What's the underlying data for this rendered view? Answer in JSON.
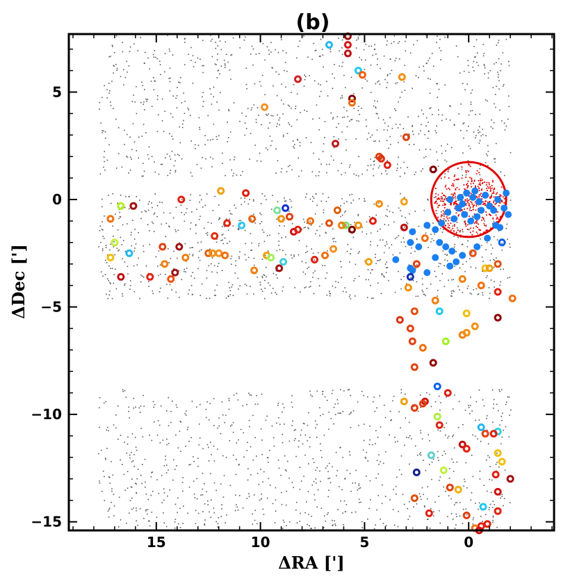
{
  "chart_data": {
    "type": "scatter",
    "title": "(b)",
    "xlabel": "ΔRA [']",
    "ylabel": "ΔDec [']",
    "xlim": [
      19.2,
      -4.1
    ],
    "ylim": [
      -15.4,
      7.7
    ],
    "x_ticks": [
      15,
      10,
      5,
      0
    ],
    "x_tick_labels": [
      "15",
      "10",
      "5",
      "0"
    ],
    "y_ticks": [
      5,
      0,
      -5,
      -10,
      -15
    ],
    "y_tick_labels": [
      "5",
      "0",
      "−5",
      "−10",
      "−15"
    ],
    "background_sources": {
      "description": "small grey points (field objects)",
      "color": "#555555",
      "count": 2600,
      "bands_dec": [
        [
          1.1,
          7.7
        ],
        [
          -8.8,
          -15.3
        ],
        [
          -4.6,
          0.3
        ]
      ],
      "x_range": [
        17.8,
        -2.0
      ]
    },
    "cluster_core": {
      "circle_center": [
        0.0,
        0.0
      ],
      "circle_radius": 1.8,
      "color": "#e00000",
      "count": 450
    },
    "blue_members": {
      "color": "#1a7ff0",
      "points": [
        [
          0.1,
          0.3
        ],
        [
          -0.2,
          0.1
        ],
        [
          -0.5,
          -0.1
        ],
        [
          -0.3,
          0.4
        ],
        [
          0.3,
          -0.2
        ],
        [
          -0.8,
          0.2
        ],
        [
          -1.0,
          -0.3
        ],
        [
          -0.6,
          -0.5
        ],
        [
          0.5,
          -0.4
        ],
        [
          0.2,
          -0.7
        ],
        [
          -0.4,
          -0.8
        ],
        [
          0.7,
          -0.9
        ],
        [
          1.0,
          -0.6
        ],
        [
          -1.2,
          -0.5
        ],
        [
          -1.7,
          -0.4
        ],
        [
          -1.8,
          0.3
        ],
        [
          -1.9,
          -0.7
        ],
        [
          -1.5,
          -1.3
        ],
        [
          1.3,
          -1.1
        ],
        [
          1.6,
          -1.4
        ],
        [
          2.0,
          -1.2
        ],
        [
          2.7,
          -1.5
        ],
        [
          2.4,
          -2.2
        ],
        [
          2.8,
          -2.0
        ],
        [
          1.4,
          -2.0
        ],
        [
          1.1,
          -2.2
        ],
        [
          0.8,
          -2.4
        ],
        [
          0.3,
          -2.6
        ],
        [
          -0.4,
          -2.2
        ],
        [
          -0.9,
          -1.8
        ],
        [
          -1.3,
          -1.2
        ],
        [
          3.5,
          -2.8
        ],
        [
          2.8,
          -3.2
        ],
        [
          2.7,
          -3.3
        ],
        [
          2.0,
          -3.4
        ],
        [
          0.9,
          -3.1
        ],
        [
          0.6,
          -2.9
        ],
        [
          1.6,
          -2.7
        ],
        [
          -0.1,
          -1.0
        ],
        [
          0.4,
          0.1
        ],
        [
          -1.4,
          0.0
        ],
        [
          0.9,
          0.0
        ]
      ]
    },
    "ring_members": {
      "points": [
        [
          5.8,
          7.6,
          "#a01010"
        ],
        [
          6.7,
          7.2,
          "#22b8f0"
        ],
        [
          5.8,
          7.2,
          "#d81818"
        ],
        [
          5.8,
          6.8,
          "#c01010"
        ],
        [
          5.3,
          6.0,
          "#22c8f0"
        ],
        [
          5.1,
          5.8,
          "#f06010"
        ],
        [
          3.2,
          5.7,
          "#f09010"
        ],
        [
          8.2,
          5.6,
          "#d02020"
        ],
        [
          5.6,
          4.7,
          "#800000"
        ],
        [
          5.6,
          4.5,
          "#f07010"
        ],
        [
          9.8,
          4.3,
          "#f09020"
        ],
        [
          3.0,
          2.9,
          "#e04010"
        ],
        [
          6.4,
          2.6,
          "#c01818"
        ],
        [
          4.3,
          2.0,
          "#e04010"
        ],
        [
          4.2,
          1.9,
          "#e03010"
        ],
        [
          3.9,
          1.6,
          "#e02010"
        ],
        [
          1.7,
          1.4,
          "#800000"
        ],
        [
          11.9,
          0.4,
          "#f0a010"
        ],
        [
          10.7,
          0.3,
          "#e02010"
        ],
        [
          13.8,
          0.0,
          "#e02010"
        ],
        [
          4.3,
          -0.2,
          "#f09010"
        ],
        [
          3.1,
          -0.1,
          "#f0a020"
        ],
        [
          16.7,
          -0.3,
          "#b0f020"
        ],
        [
          16.1,
          -0.3,
          "#a01010"
        ],
        [
          9.2,
          -0.5,
          "#80e0a0"
        ],
        [
          8.8,
          -0.4,
          "#1030d0"
        ],
        [
          6.3,
          -0.5,
          "#e06010"
        ],
        [
          17.2,
          -0.9,
          "#f07010"
        ],
        [
          10.4,
          -0.9,
          "#e06010"
        ],
        [
          9.0,
          -0.9,
          "#f09010"
        ],
        [
          8.6,
          -0.8,
          "#e04010"
        ],
        [
          7.6,
          -1.0,
          "#f07010"
        ],
        [
          6.7,
          -1.1,
          "#e05010"
        ],
        [
          11.6,
          -1.1,
          "#e02010"
        ],
        [
          10.9,
          -1.2,
          "#30c8f0"
        ],
        [
          5.9,
          -1.2,
          "#80e060"
        ],
        [
          6.1,
          -1.2,
          "#f08010"
        ],
        [
          5.6,
          -1.4,
          "#800000"
        ],
        [
          5.3,
          -1.2,
          "#f09010"
        ],
        [
          4.6,
          -1.0,
          "#e02010"
        ],
        [
          3.1,
          -1.3,
          "#c01010"
        ],
        [
          2.1,
          -1.8,
          "#f07010"
        ],
        [
          8.4,
          -1.5,
          "#d01010"
        ],
        [
          8.2,
          -1.4,
          "#e02010"
        ],
        [
          12.2,
          -1.7,
          "#e03010"
        ],
        [
          17.0,
          -2.0,
          "#c0f040"
        ],
        [
          14.7,
          -2.2,
          "#e04010"
        ],
        [
          13.9,
          -2.2,
          "#a01010"
        ],
        [
          16.3,
          -2.5,
          "#22b8f0"
        ],
        [
          12.5,
          -2.5,
          "#e06010"
        ],
        [
          12.3,
          -2.5,
          "#f09010"
        ],
        [
          12.0,
          -2.5,
          "#f09020"
        ],
        [
          11.7,
          -2.6,
          "#f07010"
        ],
        [
          13.6,
          -2.7,
          "#f08010"
        ],
        [
          9.7,
          -2.6,
          "#f0a010"
        ],
        [
          9.5,
          -2.7,
          "#a0f060"
        ],
        [
          8.9,
          -2.9,
          "#40d0e0"
        ],
        [
          7.4,
          -2.8,
          "#e02010"
        ],
        [
          6.9,
          -2.6,
          "#f07010"
        ],
        [
          6.5,
          -2.3,
          "#f09020"
        ],
        [
          17.2,
          -2.7,
          "#f0c010"
        ],
        [
          14.6,
          -3.0,
          "#f08010"
        ],
        [
          14.3,
          -3.7,
          "#f05010"
        ],
        [
          14.1,
          -3.4,
          "#a01010"
        ],
        [
          16.7,
          -3.6,
          "#c01010"
        ],
        [
          15.3,
          -3.6,
          "#e02010"
        ],
        [
          10.3,
          -3.3,
          "#f08010"
        ],
        [
          9.1,
          -3.2,
          "#a01010"
        ],
        [
          4.8,
          -2.9,
          "#f0a010"
        ],
        [
          2.5,
          -3.0,
          "#e04010"
        ],
        [
          2.8,
          -3.6,
          "#1030b0"
        ],
        [
          2.9,
          -4.1,
          "#f09010"
        ],
        [
          -0.2,
          -2.5,
          "#e05010"
        ],
        [
          -0.8,
          -3.2,
          "#f0c010"
        ],
        [
          -1.0,
          -3.2,
          "#f0a010"
        ],
        [
          -1.4,
          -3.0,
          "#e05010"
        ],
        [
          -1.6,
          -2.0,
          "#1060f0"
        ],
        [
          -1.4,
          -4.3,
          "#e02010"
        ],
        [
          0.3,
          -3.7,
          "#f08010"
        ],
        [
          -0.6,
          -4.0,
          "#f07010"
        ],
        [
          1.6,
          -4.7,
          "#f08010"
        ],
        [
          1.4,
          -5.2,
          "#22c8f0"
        ],
        [
          2.6,
          -5.2,
          "#e05010"
        ],
        [
          3.3,
          -5.6,
          "#e03010"
        ],
        [
          2.8,
          -6.0,
          "#e04010"
        ],
        [
          2.7,
          -6.6,
          "#e04010"
        ],
        [
          2.2,
          -6.9,
          "#f07010"
        ],
        [
          1.1,
          -6.6,
          "#a0f020"
        ],
        [
          0.3,
          -6.3,
          "#f08010"
        ],
        [
          0.1,
          -6.2,
          "#f09010"
        ],
        [
          -0.3,
          -5.9,
          "#f09010"
        ],
        [
          0.1,
          -5.3,
          "#f0c010"
        ],
        [
          -1.4,
          -5.5,
          "#900000"
        ],
        [
          -2.1,
          -4.6,
          "#f07010"
        ],
        [
          1.7,
          -7.6,
          "#900000"
        ],
        [
          2.6,
          -7.8,
          "#e04010"
        ],
        [
          1.5,
          -8.7,
          "#1060f0"
        ],
        [
          1.0,
          -9.0,
          "#e02010"
        ],
        [
          2.1,
          -9.4,
          "#d01010"
        ],
        [
          2.2,
          -9.5,
          "#e04010"
        ],
        [
          3.1,
          -9.4,
          "#f0a010"
        ],
        [
          2.6,
          -9.7,
          "#e04010"
        ],
        [
          1.5,
          -10.1,
          "#b0f040"
        ],
        [
          1.4,
          -10.5,
          "#e02010"
        ],
        [
          -0.6,
          -10.6,
          "#22b8f0"
        ],
        [
          -1.4,
          -10.8,
          "#30d0e0"
        ],
        [
          -1.2,
          -10.9,
          "#e02010"
        ],
        [
          -0.8,
          -10.9,
          "#e04010"
        ],
        [
          0.3,
          -11.4,
          "#c01010"
        ],
        [
          -1.4,
          -11.8,
          "#f0c010"
        ],
        [
          0.1,
          -11.6,
          "#e02010"
        ],
        [
          1.8,
          -11.9,
          "#60d0d0"
        ],
        [
          -1.6,
          -12.2,
          "#f0c010"
        ],
        [
          1.2,
          -12.6,
          "#c0f040"
        ],
        [
          2.5,
          -12.7,
          "#102090"
        ],
        [
          -2.0,
          -13.0,
          "#a01010"
        ],
        [
          -1.3,
          -12.8,
          "#e02010"
        ],
        [
          -1.4,
          -13.6,
          "#d01010"
        ],
        [
          0.9,
          -13.4,
          "#e04010"
        ],
        [
          0.5,
          -13.5,
          "#f0b010"
        ],
        [
          2.6,
          -13.9,
          "#e05010"
        ],
        [
          -0.7,
          -14.3,
          "#22c8f0"
        ],
        [
          -1.4,
          -14.5,
          "#e02010"
        ],
        [
          1.9,
          -14.6,
          "#e02010"
        ],
        [
          0.1,
          -14.7,
          "#e04010"
        ],
        [
          -0.9,
          -15.1,
          "#e02010"
        ],
        [
          -0.6,
          -15.2,
          "#e02010"
        ],
        [
          -0.3,
          -15.3,
          "#f07010"
        ],
        [
          -0.5,
          -15.4,
          "#d01010"
        ]
      ]
    }
  }
}
